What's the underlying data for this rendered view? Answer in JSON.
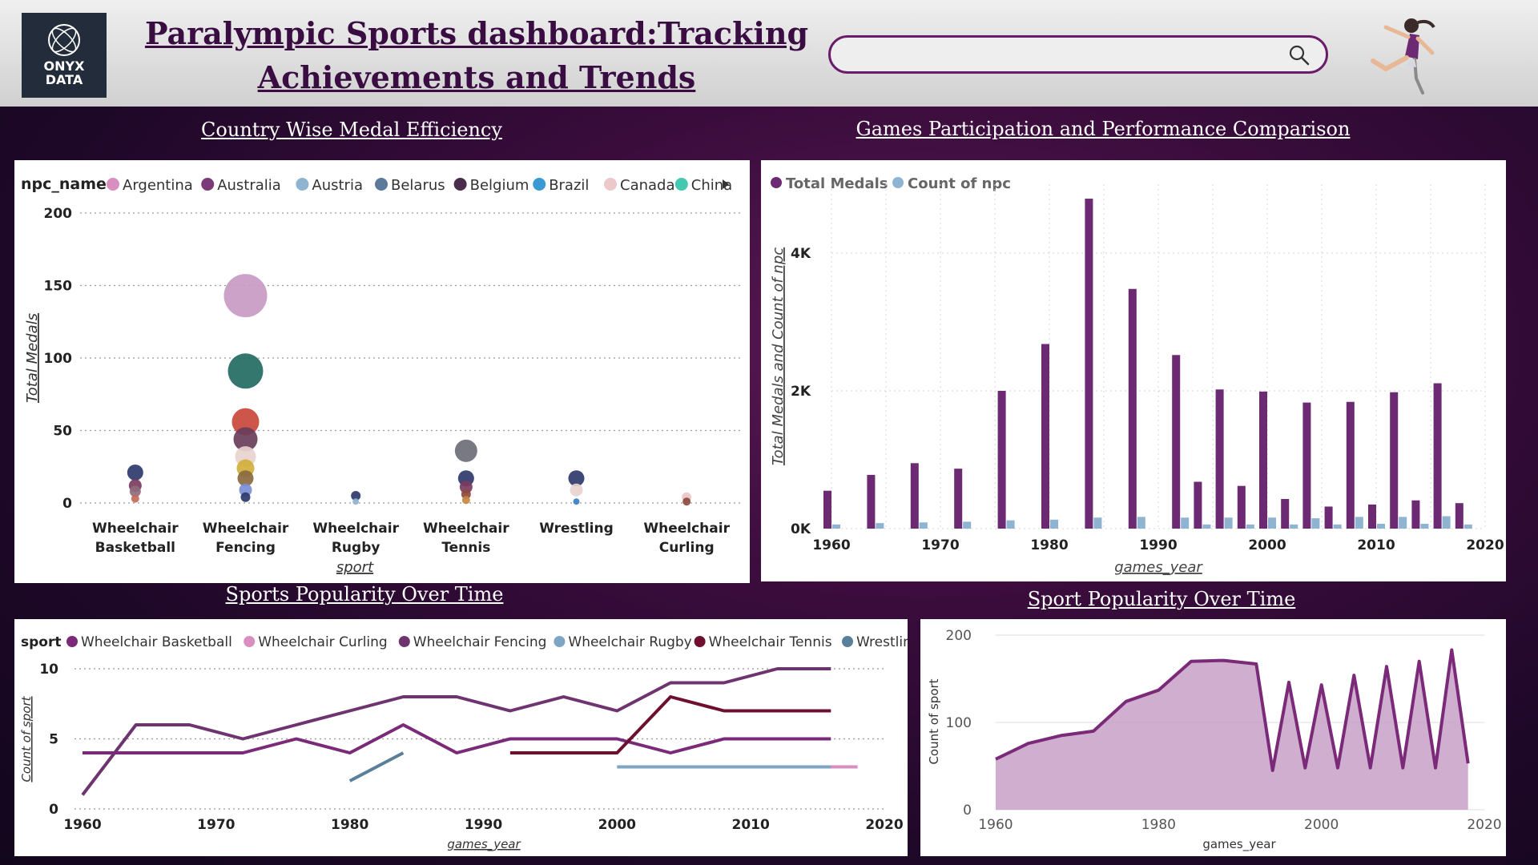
{
  "header": {
    "logo_text": "ONYX\nDATA",
    "title": "Paralympic Sports dashboard:Tracking Achievements and Trends"
  },
  "colors": {
    "header_bg": "#d9d9d9",
    "title_color": "#3a0d42",
    "dark_purple": "#6b2a72",
    "light_blue": "#8fb4d1",
    "lilac": "#c8a0c8"
  },
  "panels": {
    "bubble_title": "Country Wise Medal Efficiency",
    "bar_title": "Games Participation and Performance Comparison",
    "line_title": "Sports Popularity Over Time",
    "area_title": "Sport Popularity Over Time"
  },
  "chart_data": [
    {
      "type": "scatter",
      "title": "Country Wise Medal Efficiency",
      "xlabel": "sport",
      "ylabel": "Total Medals",
      "legend_title": "npc_name",
      "legend": [
        {
          "name": "Argentina",
          "color": "#d88fc0"
        },
        {
          "name": "Australia",
          "color": "#7b3b78"
        },
        {
          "name": "Austria",
          "color": "#8fb4d1"
        },
        {
          "name": "Belarus",
          "color": "#5c7a9a"
        },
        {
          "name": "Belgium",
          "color": "#4a2d4d"
        },
        {
          "name": "Brazil",
          "color": "#3b9ad4"
        },
        {
          "name": "Canada",
          "color": "#ecc8c8"
        },
        {
          "name": "China",
          "color": "#45c8b0"
        }
      ],
      "categories": [
        "Wheelchair Basketball",
        "Wheelchair Fencing",
        "Wheelchair Rugby",
        "Wheelchair Tennis",
        "Wrestling",
        "Wheelchair Curling"
      ],
      "ylim": [
        0,
        200
      ],
      "yticks": [
        0,
        50,
        100,
        150,
        200
      ],
      "points": [
        {
          "cat": 0,
          "y": 21,
          "r": 10,
          "color": "#2e3a6b"
        },
        {
          "cat": 0,
          "y": 12,
          "r": 8,
          "color": "#7b3b60"
        },
        {
          "cat": 0,
          "y": 8,
          "r": 7,
          "color": "#8e6d7b"
        },
        {
          "cat": 0,
          "y": 3,
          "r": 5,
          "color": "#c46a5a"
        },
        {
          "cat": 1,
          "y": 143,
          "r": 27,
          "color": "#c89ac4"
        },
        {
          "cat": 1,
          "y": 91,
          "r": 22,
          "color": "#236b63"
        },
        {
          "cat": 1,
          "y": 56,
          "r": 17,
          "color": "#c9463a"
        },
        {
          "cat": 1,
          "y": 44,
          "r": 15,
          "color": "#6a3e5a"
        },
        {
          "cat": 1,
          "y": 32,
          "r": 13,
          "color": "#e8d3cf"
        },
        {
          "cat": 1,
          "y": 24,
          "r": 11,
          "color": "#d0b03c"
        },
        {
          "cat": 1,
          "y": 17,
          "r": 10,
          "color": "#8a6a3e"
        },
        {
          "cat": 1,
          "y": 9,
          "r": 8,
          "color": "#7b8ed4"
        },
        {
          "cat": 1,
          "y": 4,
          "r": 6,
          "color": "#2e3a6b"
        },
        {
          "cat": 2,
          "y": 5,
          "r": 6,
          "color": "#2e3a6b"
        },
        {
          "cat": 2,
          "y": 1,
          "r": 4,
          "color": "#8fb4d1"
        },
        {
          "cat": 3,
          "y": 36,
          "r": 14,
          "color": "#6e6e7a"
        },
        {
          "cat": 3,
          "y": 17,
          "r": 10,
          "color": "#2e3a6b"
        },
        {
          "cat": 3,
          "y": 11,
          "r": 8,
          "color": "#7b3b60"
        },
        {
          "cat": 3,
          "y": 6,
          "r": 6,
          "color": "#8e4a3e"
        },
        {
          "cat": 3,
          "y": 2,
          "r": 5,
          "color": "#c48a40"
        },
        {
          "cat": 4,
          "y": 17,
          "r": 10,
          "color": "#2e3a6b"
        },
        {
          "cat": 4,
          "y": 9,
          "r": 8,
          "color": "#e8d3cf"
        },
        {
          "cat": 4,
          "y": 1,
          "r": 4,
          "color": "#3b7fc4"
        },
        {
          "cat": 5,
          "y": 4,
          "r": 6,
          "color": "#e8c8c8"
        },
        {
          "cat": 5,
          "y": 1,
          "r": 5,
          "color": "#8e4a3e"
        }
      ]
    },
    {
      "type": "bar",
      "title": "Games Participation and Performance Comparison",
      "xlabel": "games_year",
      "ylabel": "Total Medals and Count of npc",
      "xlim": [
        1960,
        2020
      ],
      "ylim": [
        0,
        5000
      ],
      "xticks": [
        1960,
        1970,
        1980,
        1990,
        2000,
        2010,
        2020
      ],
      "yticks": [
        {
          "v": 0,
          "label": "0K"
        },
        {
          "v": 2000,
          "label": "2K"
        },
        {
          "v": 4000,
          "label": "4K"
        }
      ],
      "x": [
        1960,
        1964,
        1968,
        1972,
        1976,
        1980,
        1984,
        1988,
        1992,
        1994,
        1996,
        1998,
        2000,
        2002,
        2004,
        2006,
        2008,
        2010,
        2012,
        2014,
        2016,
        2018
      ],
      "series": [
        {
          "name": "Total Medals",
          "color": "#6b2a72",
          "values": [
            550,
            780,
            950,
            870,
            2000,
            2680,
            4790,
            3480,
            2520,
            680,
            2020,
            620,
            1990,
            430,
            1830,
            320,
            1840,
            350,
            1980,
            410,
            2110,
            370
          ]
        },
        {
          "name": "Count of npc",
          "color": "#8fb4d1",
          "values": [
            60,
            80,
            90,
            100,
            120,
            130,
            160,
            170,
            160,
            60,
            160,
            60,
            160,
            60,
            150,
            60,
            170,
            70,
            170,
            70,
            180,
            60
          ]
        }
      ]
    },
    {
      "type": "line",
      "title": "Sports Popularity Over Time",
      "xlabel": "games_year",
      "ylabel": "Count of sport",
      "legend_title": "sport",
      "xlim": [
        1960,
        2020
      ],
      "ylim": [
        0,
        10
      ],
      "xticks": [
        1960,
        1970,
        1980,
        1990,
        2000,
        2010,
        2020
      ],
      "yticks": [
        0,
        5,
        10
      ],
      "series": [
        {
          "name": "Wheelchair Basketball",
          "color": "#7a2a78",
          "points": [
            [
              1960,
              4
            ],
            [
              1964,
              4
            ],
            [
              1968,
              4
            ],
            [
              1972,
              4
            ],
            [
              1976,
              5
            ],
            [
              1980,
              4
            ],
            [
              1984,
              6
            ],
            [
              1988,
              4
            ],
            [
              1992,
              5
            ],
            [
              1996,
              5
            ],
            [
              2000,
              5
            ],
            [
              2004,
              4
            ],
            [
              2008,
              5
            ],
            [
              2012,
              5
            ],
            [
              2016,
              5
            ]
          ]
        },
        {
          "name": "Wheelchair Curling",
          "color": "#d88fc0",
          "points": [
            [
              2014,
              3
            ],
            [
              2018,
              3
            ]
          ]
        },
        {
          "name": "Wheelchair Fencing",
          "color": "#6e3470",
          "points": [
            [
              1960,
              1
            ],
            [
              1964,
              6
            ],
            [
              1968,
              6
            ],
            [
              1972,
              5
            ],
            [
              1976,
              6
            ],
            [
              1980,
              7
            ],
            [
              1984,
              8
            ],
            [
              1988,
              8
            ],
            [
              1992,
              7
            ],
            [
              1996,
              8
            ],
            [
              2000,
              7
            ],
            [
              2004,
              9
            ],
            [
              2008,
              9
            ],
            [
              2012,
              10
            ],
            [
              2016,
              10
            ]
          ]
        },
        {
          "name": "Wheelchair Rugby",
          "color": "#7ea6c4",
          "points": [
            [
              2000,
              3
            ],
            [
              2004,
              3
            ],
            [
              2008,
              3
            ],
            [
              2012,
              3
            ],
            [
              2016,
              3
            ]
          ]
        },
        {
          "name": "Wheelchair Tennis",
          "color": "#6e0f2e",
          "points": [
            [
              1992,
              4
            ],
            [
              1996,
              4
            ],
            [
              2000,
              4
            ],
            [
              2004,
              8
            ],
            [
              2008,
              7
            ],
            [
              2012,
              7
            ],
            [
              2016,
              7
            ]
          ]
        },
        {
          "name": "Wrestling",
          "color": "#5a7f9a",
          "points": [
            [
              1980,
              2
            ],
            [
              1984,
              4
            ]
          ]
        }
      ]
    },
    {
      "type": "area",
      "title": "Sport Popularity Over Time",
      "xlabel": "games_year",
      "ylabel": "Count of sport",
      "xlim": [
        1960,
        2020
      ],
      "ylim": [
        0,
        200
      ],
      "xticks": [
        1960,
        1980,
        2000,
        2020
      ],
      "yticks": [
        0,
        100,
        200
      ],
      "x": [
        1960,
        1964,
        1968,
        1972,
        1976,
        1980,
        1984,
        1988,
        1992,
        1994,
        1996,
        1998,
        2000,
        2002,
        2004,
        2006,
        2008,
        2010,
        2012,
        2014,
        2016,
        2018
      ],
      "values": [
        58,
        76,
        85,
        90,
        124,
        137,
        170,
        171,
        167,
        45,
        146,
        48,
        143,
        48,
        154,
        48,
        164,
        48,
        170,
        48,
        183,
        53
      ]
    }
  ]
}
